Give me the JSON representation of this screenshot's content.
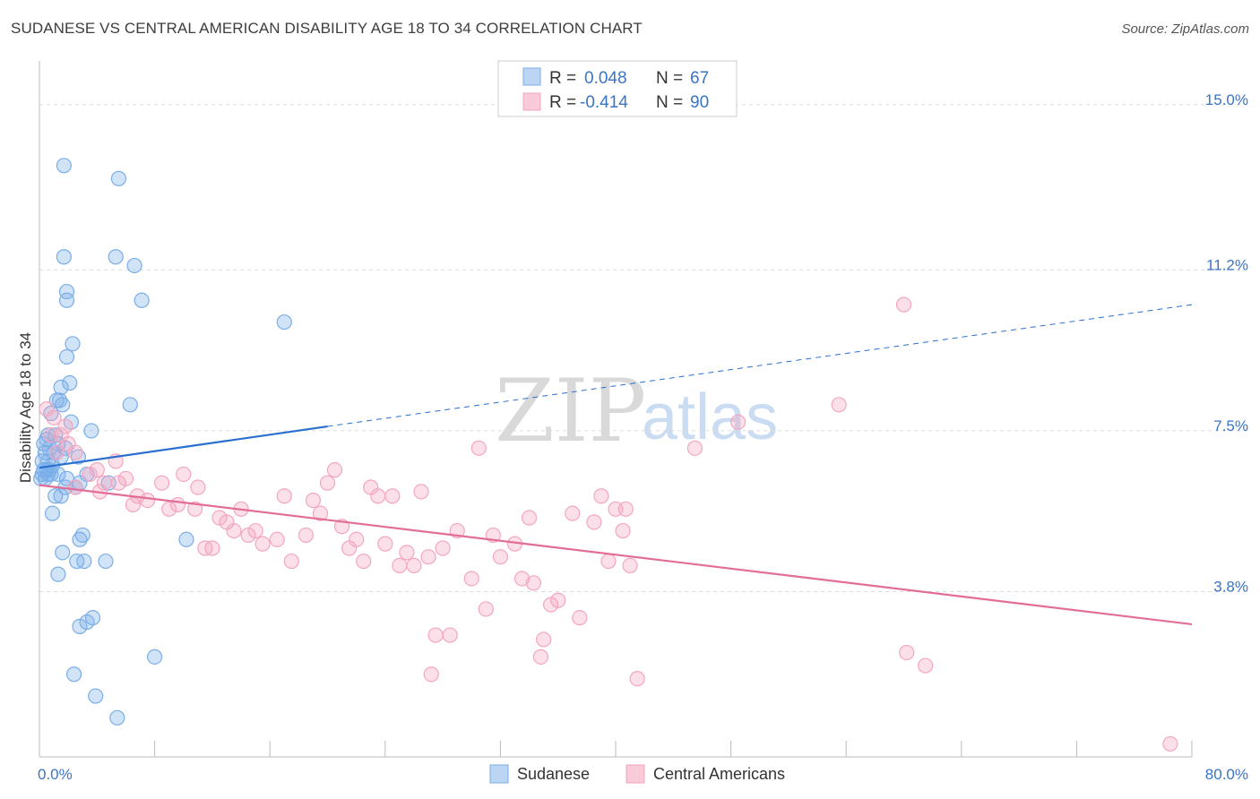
{
  "header": {
    "title": "SUDANESE VS CENTRAL AMERICAN DISABILITY AGE 18 TO 34 CORRELATION CHART",
    "source": "Source: ZipAtlas.com"
  },
  "colors": {
    "blue": "#7aaee8",
    "blue_line": "#2a6fd0",
    "pink": "#f4a6bf",
    "pink_line": "#e26d98",
    "grid": "#dcdcdc",
    "tick_text": "#3a74c4"
  },
  "watermark": {
    "zip": "ZIP",
    "atlas": "atlas"
  },
  "legend": {
    "r_label": "R =",
    "n_label": "N =",
    "rows": [
      {
        "series": "Sudanese",
        "r": "0.048",
        "n": "67"
      },
      {
        "series": "Central Americans",
        "r": "-0.414",
        "n": "90"
      }
    ]
  },
  "bottom_legend": [
    "Sudanese",
    "Central Americans"
  ],
  "chart_data": {
    "type": "scatter",
    "title": "SUDANESE VS CENTRAL AMERICAN DISABILITY AGE 18 TO 34 CORRELATION CHART",
    "xlabel": "",
    "ylabel": "Disability Age 18 to 34",
    "xlim": [
      0,
      80
    ],
    "ylim": [
      0,
      15.8
    ],
    "x_tick_labels": [
      "0.0%",
      "80.0%"
    ],
    "y_ticks": [
      3.8,
      7.5,
      11.2,
      15.0
    ],
    "y_tick_labels": [
      "3.8%",
      "7.5%",
      "11.2%",
      "15.0%"
    ],
    "series": [
      {
        "name": "Sudanese",
        "color": "#7aaee8",
        "trend": {
          "x0": 0,
          "y0": 6.65,
          "x1": 20,
          "y1": 7.6,
          "dashed_to_x": 80,
          "dashed_to_y": 10.4
        },
        "points": [
          [
            1.7,
            13.6
          ],
          [
            5.5,
            13.3
          ],
          [
            1.7,
            11.5
          ],
          [
            5.3,
            11.5
          ],
          [
            6.6,
            11.3
          ],
          [
            1.9,
            10.7
          ],
          [
            1.9,
            10.5
          ],
          [
            7.1,
            10.5
          ],
          [
            17.0,
            10.0
          ],
          [
            2.3,
            9.5
          ],
          [
            1.9,
            9.2
          ],
          [
            2.1,
            8.6
          ],
          [
            1.5,
            8.5
          ],
          [
            6.3,
            8.1
          ],
          [
            1.2,
            8.2
          ],
          [
            1.4,
            8.2
          ],
          [
            1.6,
            8.1
          ],
          [
            0.8,
            7.9
          ],
          [
            2.2,
            7.7
          ],
          [
            3.6,
            7.5
          ],
          [
            0.6,
            7.4
          ],
          [
            1.1,
            7.4
          ],
          [
            0.5,
            7.3
          ],
          [
            0.3,
            7.2
          ],
          [
            1.3,
            7.2
          ],
          [
            0.7,
            7.1
          ],
          [
            1.8,
            7.1
          ],
          [
            0.4,
            7.0
          ],
          [
            1.0,
            7.0
          ],
          [
            2.7,
            6.9
          ],
          [
            0.2,
            6.8
          ],
          [
            1.5,
            6.9
          ],
          [
            0.6,
            6.8
          ],
          [
            0.9,
            6.7
          ],
          [
            0.3,
            6.6
          ],
          [
            0.5,
            6.6
          ],
          [
            0.2,
            6.5
          ],
          [
            0.8,
            6.5
          ],
          [
            0.4,
            6.4
          ],
          [
            1.3,
            6.5
          ],
          [
            1.9,
            6.4
          ],
          [
            3.3,
            6.5
          ],
          [
            0.1,
            6.4
          ],
          [
            0.6,
            6.5
          ],
          [
            2.8,
            6.3
          ],
          [
            4.8,
            6.3
          ],
          [
            1.8,
            6.2
          ],
          [
            2.5,
            6.2
          ],
          [
            1.1,
            6.0
          ],
          [
            1.5,
            6.0
          ],
          [
            0.9,
            5.6
          ],
          [
            3.0,
            5.1
          ],
          [
            2.8,
            5.0
          ],
          [
            10.2,
            5.0
          ],
          [
            1.6,
            4.7
          ],
          [
            2.6,
            4.5
          ],
          [
            3.1,
            4.5
          ],
          [
            4.6,
            4.5
          ],
          [
            1.3,
            4.2
          ],
          [
            3.7,
            3.2
          ],
          [
            3.3,
            3.1
          ],
          [
            2.8,
            3.0
          ],
          [
            8.0,
            2.3
          ],
          [
            2.4,
            1.9
          ],
          [
            3.9,
            1.4
          ],
          [
            5.4,
            0.9
          ],
          [
            0.7,
            6.6
          ]
        ]
      },
      {
        "name": "Central Americans",
        "color": "#f4a6bf",
        "trend": {
          "x0": 0,
          "y0": 6.25,
          "x1": 80,
          "y1": 3.05
        },
        "points": [
          [
            0.5,
            8.0
          ],
          [
            1.0,
            7.8
          ],
          [
            1.5,
            7.4
          ],
          [
            2.0,
            7.2
          ],
          [
            1.2,
            7.0
          ],
          [
            2.5,
            7.0
          ],
          [
            0.8,
            7.4
          ],
          [
            4.0,
            6.6
          ],
          [
            5.3,
            6.8
          ],
          [
            6.0,
            6.4
          ],
          [
            3.5,
            6.5
          ],
          [
            4.5,
            6.3
          ],
          [
            2.5,
            6.2
          ],
          [
            4.2,
            6.1
          ],
          [
            5.5,
            6.3
          ],
          [
            6.8,
            6.0
          ],
          [
            7.5,
            5.9
          ],
          [
            8.5,
            6.3
          ],
          [
            6.5,
            5.8
          ],
          [
            9.0,
            5.7
          ],
          [
            9.6,
            5.8
          ],
          [
            10.0,
            6.5
          ],
          [
            11.0,
            6.2
          ],
          [
            10.8,
            5.7
          ],
          [
            12.5,
            5.5
          ],
          [
            13.0,
            5.4
          ],
          [
            14.0,
            5.7
          ],
          [
            12.0,
            4.8
          ],
          [
            11.5,
            4.8
          ],
          [
            13.5,
            5.2
          ],
          [
            14.5,
            5.1
          ],
          [
            15.0,
            5.2
          ],
          [
            15.5,
            4.9
          ],
          [
            16.5,
            5.0
          ],
          [
            17.0,
            6.0
          ],
          [
            17.5,
            4.5
          ],
          [
            18.5,
            5.1
          ],
          [
            19.0,
            5.9
          ],
          [
            19.5,
            5.6
          ],
          [
            20.0,
            6.3
          ],
          [
            20.5,
            6.6
          ],
          [
            21.0,
            5.3
          ],
          [
            21.5,
            4.8
          ],
          [
            22.0,
            5.0
          ],
          [
            22.5,
            4.5
          ],
          [
            23.0,
            6.2
          ],
          [
            23.5,
            6.0
          ],
          [
            24.0,
            4.9
          ],
          [
            24.5,
            6.0
          ],
          [
            25.0,
            4.4
          ],
          [
            25.5,
            4.7
          ],
          [
            26.5,
            6.1
          ],
          [
            26.0,
            4.4
          ],
          [
            27.0,
            4.6
          ],
          [
            28.0,
            4.8
          ],
          [
            29.0,
            5.2
          ],
          [
            30.0,
            4.1
          ],
          [
            30.5,
            7.1
          ],
          [
            31.0,
            3.4
          ],
          [
            31.5,
            5.1
          ],
          [
            32.0,
            4.6
          ],
          [
            33.0,
            4.9
          ],
          [
            33.5,
            4.1
          ],
          [
            34.0,
            5.5
          ],
          [
            34.3,
            4.0
          ],
          [
            35.0,
            2.7
          ],
          [
            35.5,
            3.5
          ],
          [
            36.0,
            3.6
          ],
          [
            37.0,
            5.6
          ],
          [
            37.5,
            3.2
          ],
          [
            38.5,
            5.4
          ],
          [
            39.0,
            6.0
          ],
          [
            39.5,
            4.5
          ],
          [
            40.0,
            5.7
          ],
          [
            40.5,
            5.2
          ],
          [
            40.7,
            5.7
          ],
          [
            41.0,
            4.4
          ],
          [
            27.5,
            2.8
          ],
          [
            28.5,
            2.8
          ],
          [
            27.2,
            1.9
          ],
          [
            34.8,
            2.3
          ],
          [
            41.5,
            1.8
          ],
          [
            45.5,
            7.1
          ],
          [
            48.5,
            7.7
          ],
          [
            55.5,
            8.1
          ],
          [
            60.0,
            10.4
          ],
          [
            60.2,
            2.4
          ],
          [
            61.5,
            2.1
          ],
          [
            78.5,
            0.3
          ],
          [
            1.8,
            7.6
          ]
        ]
      }
    ]
  }
}
